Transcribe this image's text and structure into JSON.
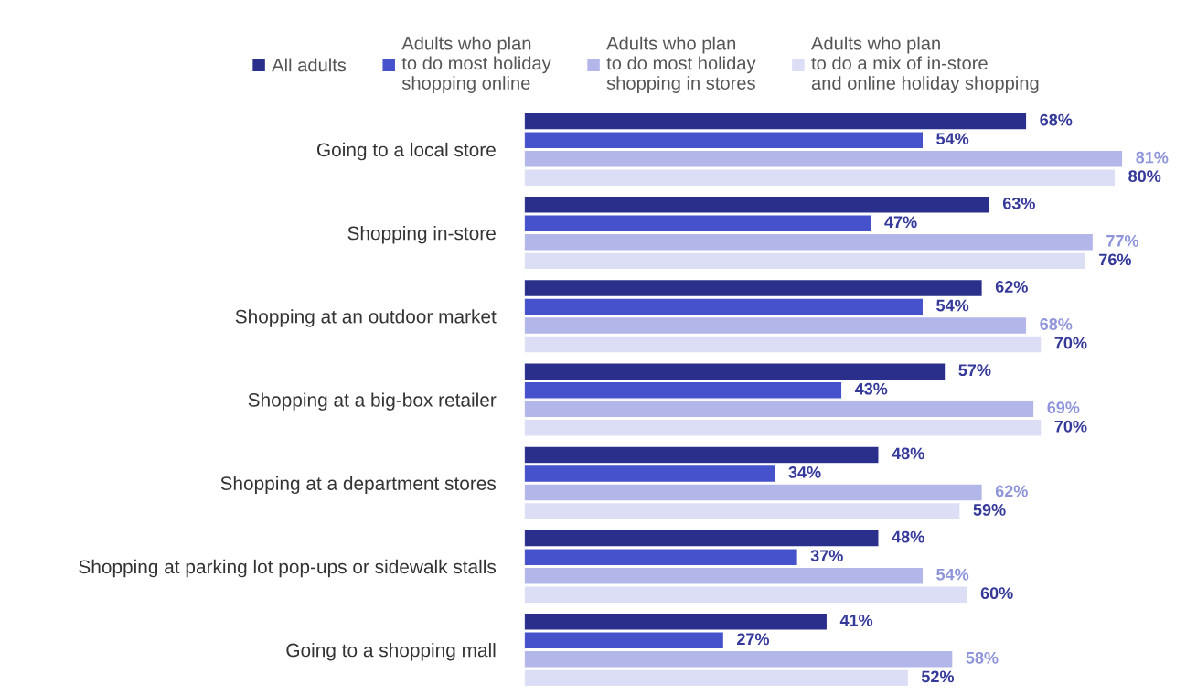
{
  "chart_data": {
    "type": "bar",
    "orientation": "horizontal",
    "legend": "top",
    "grid": false,
    "tick_labels": "y",
    "categories": [
      "Going to a local store",
      "Shopping in-store",
      "Shopping at an outdoor market",
      "Shopping at a big-box retailer",
      "Shopping at a department stores",
      "Shopping at parking lot pop-ups or sidewalk stalls",
      "Going to a shopping mall"
    ],
    "series": [
      {
        "name": "All adults",
        "color": "#2a2f8c",
        "values": [
          68,
          63,
          62,
          57,
          48,
          48,
          41
        ],
        "value_labels": [
          "68%",
          "63%",
          "62%",
          "57%",
          "48%",
          "48%",
          "41%"
        ]
      },
      {
        "name": "Adults who plan\nto do most holiday\nshopping online",
        "color": "#4651cc",
        "values": [
          54,
          47,
          54,
          43,
          34,
          37,
          27
        ],
        "value_labels": [
          "54%",
          "47%",
          "54%",
          "43%",
          "34%",
          "37%",
          "27%"
        ]
      },
      {
        "name": "Adults who plan\nto do most holiday\nshopping in stores",
        "color": "#b2b6e9",
        "values": [
          81,
          77,
          68,
          69,
          62,
          54,
          58
        ],
        "value_labels": [
          "81%",
          "77%",
          "68%",
          "69%",
          "62%",
          "54%",
          "58%"
        ]
      },
      {
        "name": "Adults who plan\nto do a mix of in-store\nand online holiday shopping",
        "color": "#dcdef5",
        "values": [
          80,
          76,
          70,
          70,
          59,
          60,
          52
        ],
        "value_labels": [
          "80%",
          "76%",
          "70%",
          "70%",
          "59%",
          "60%",
          "52%"
        ]
      }
    ]
  }
}
